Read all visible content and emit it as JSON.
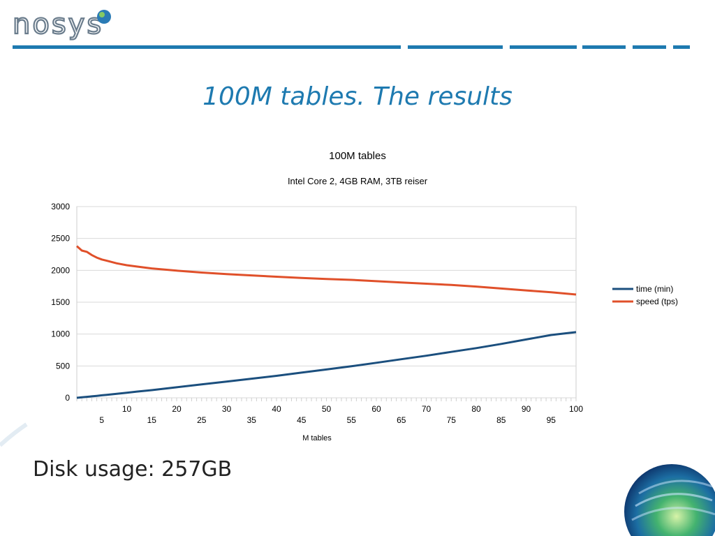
{
  "slide": {
    "logo_text": "nosys",
    "title": "100M tables. The results",
    "footer_text": "Disk usage: 257GB",
    "colors": {
      "accent": "#1e7ab0",
      "bar": "#1e7ab0"
    }
  },
  "chart_data": {
    "type": "line",
    "title": "100M tables",
    "subtitle": "Intel Core 2, 4GB RAM, 3TB reiser",
    "xlabel": "M tables",
    "ylabel": "",
    "xlim": [
      0,
      100
    ],
    "ylim": [
      0,
      3000
    ],
    "yticks": [
      0,
      500,
      1000,
      1500,
      2000,
      2500,
      3000
    ],
    "xticks_upper": [
      10,
      20,
      30,
      40,
      50,
      60,
      70,
      80,
      90,
      100
    ],
    "xticks_lower": [
      5,
      15,
      25,
      35,
      45,
      55,
      65,
      75,
      85,
      95
    ],
    "grid": true,
    "legend_position": "right",
    "x": [
      0,
      1,
      2,
      3,
      4,
      5,
      6,
      8,
      10,
      12,
      15,
      20,
      25,
      30,
      35,
      40,
      45,
      50,
      55,
      60,
      65,
      70,
      75,
      80,
      85,
      90,
      95,
      100
    ],
    "series": [
      {
        "name": "time (min)",
        "color": "#1b4f7e",
        "values": [
          0,
          8,
          15,
          23,
          31,
          39,
          47,
          63,
          80,
          97,
          120,
          165,
          210,
          255,
          300,
          345,
          395,
          445,
          495,
          550,
          605,
          660,
          720,
          780,
          845,
          915,
          985,
          1030
        ]
      },
      {
        "name": "speed (tps)",
        "color": "#e0502a",
        "values": [
          2380,
          2310,
          2290,
          2240,
          2200,
          2170,
          2150,
          2110,
          2080,
          2060,
          2030,
          1995,
          1965,
          1940,
          1920,
          1900,
          1880,
          1865,
          1850,
          1830,
          1810,
          1790,
          1770,
          1745,
          1715,
          1685,
          1655,
          1620
        ]
      }
    ]
  }
}
